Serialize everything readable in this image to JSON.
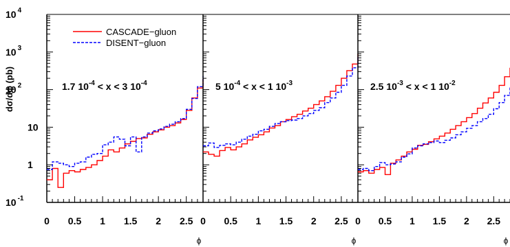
{
  "colors": {
    "cascade": "#ff0000",
    "disent": "#0000ff",
    "axis": "#000000"
  },
  "ylabel": "dσ/dϕ (pb)",
  "y_ticks": [
    {
      "value": 0.1,
      "base": "10",
      "exp": "-1"
    },
    {
      "value": 1,
      "base": "1",
      "exp": ""
    },
    {
      "value": 10,
      "base": "10",
      "exp": ""
    },
    {
      "value": 100,
      "base": "10",
      "exp": "2"
    },
    {
      "value": 1000,
      "base": "10",
      "exp": "3"
    },
    {
      "value": 10000,
      "base": "10",
      "exp": "4"
    }
  ],
  "x_tick_labels": [
    "0",
    "0.5",
    "1",
    "1.5",
    "2",
    "2.5"
  ],
  "legend": {
    "cascade": "CASCADE−gluon",
    "disent": "DISENT−gluon"
  },
  "chart_data": [
    {
      "type": "line",
      "title": "",
      "xlabel": "ϕ",
      "ylabel": "dσ/dϕ (pb)",
      "y_scale": "log",
      "xlim": [
        0,
        2.8
      ],
      "ylim": [
        0.1,
        10000
      ],
      "annotation": {
        "lo": "1.7",
        "lo_exp": "-4",
        "mid": " < x < 3 ",
        "hi": "10",
        "hi_exp": "-4"
      },
      "x": [
        0.0,
        0.1,
        0.2,
        0.3,
        0.4,
        0.5,
        0.6,
        0.7,
        0.8,
        0.9,
        1.0,
        1.1,
        1.2,
        1.3,
        1.4,
        1.5,
        1.6,
        1.7,
        1.8,
        1.9,
        2.0,
        2.1,
        2.2,
        2.3,
        2.4,
        2.5,
        2.6,
        2.7,
        2.8
      ],
      "series": [
        {
          "name": "CASCADE−gluon",
          "values": [
            0.4,
            0.8,
            0.25,
            0.6,
            0.7,
            0.65,
            0.75,
            0.85,
            1.0,
            1.3,
            1.7,
            2.5,
            2.2,
            2.8,
            3.6,
            4.2,
            5.0,
            5.2,
            6.5,
            7.5,
            8.5,
            10,
            11,
            13,
            16,
            28,
            60,
            110,
            190
          ]
        },
        {
          "name": "DISENT−gluon",
          "values": [
            0.75,
            1.2,
            1.1,
            1.0,
            0.9,
            1.1,
            1.2,
            1.6,
            1.9,
            2.0,
            3.4,
            4.0,
            5.5,
            4.8,
            3.2,
            5.5,
            2.2,
            5.5,
            7.0,
            8.0,
            9.0,
            10.5,
            12,
            14,
            17,
            30,
            58,
            120,
            230
          ]
        }
      ]
    },
    {
      "type": "line",
      "title": "",
      "xlabel": "ϕ",
      "ylabel": "",
      "y_scale": "log",
      "xlim": [
        0,
        2.8
      ],
      "ylim": [
        0.1,
        10000
      ],
      "annotation": {
        "lo": "5",
        "lo_exp": "-4",
        "mid": " < x < 1 ",
        "hi": "10",
        "hi_exp": "-3"
      },
      "x": [
        0.0,
        0.1,
        0.2,
        0.3,
        0.4,
        0.5,
        0.6,
        0.7,
        0.8,
        0.9,
        1.0,
        1.1,
        1.2,
        1.3,
        1.4,
        1.5,
        1.6,
        1.7,
        1.8,
        1.9,
        2.0,
        2.1,
        2.2,
        2.3,
        2.4,
        2.5,
        2.6,
        2.7,
        2.8
      ],
      "series": [
        {
          "name": "CASCADE−gluon",
          "values": [
            2.2,
            1.9,
            1.7,
            2.4,
            2.9,
            2.5,
            3.0,
            3.6,
            4.6,
            5.4,
            6.3,
            7.5,
            9.5,
            11,
            14,
            16,
            19,
            22,
            27,
            32,
            40,
            50,
            65,
            90,
            130,
            200,
            320,
            480,
            900
          ]
        },
        {
          "name": "DISENT−gluon",
          "values": [
            3.2,
            3.8,
            2.9,
            3.3,
            3.6,
            3.4,
            4.0,
            4.8,
            5.8,
            6.5,
            8.0,
            8.8,
            10.5,
            12.5,
            14,
            15,
            15.5,
            17,
            20,
            23,
            28,
            33,
            45,
            60,
            85,
            130,
            230,
            380,
            760
          ]
        }
      ]
    },
    {
      "type": "line",
      "title": "",
      "xlabel": "ϕ",
      "ylabel": "",
      "y_scale": "log",
      "xlim": [
        0,
        2.8
      ],
      "ylim": [
        0.1,
        10000
      ],
      "annotation": {
        "lo": "2.5",
        "lo_exp": "-3",
        "mid": " < x < 1 ",
        "hi": "10",
        "hi_exp": "-2"
      },
      "x": [
        0.0,
        0.1,
        0.2,
        0.3,
        0.4,
        0.5,
        0.6,
        0.7,
        0.8,
        0.9,
        1.0,
        1.1,
        1.2,
        1.3,
        1.4,
        1.5,
        1.6,
        1.7,
        1.8,
        1.9,
        2.0,
        2.1,
        2.2,
        2.3,
        2.4,
        2.5,
        2.6,
        2.7,
        2.8
      ],
      "series": [
        {
          "name": "CASCADE−gluon",
          "values": [
            0.65,
            0.7,
            0.6,
            0.75,
            0.85,
            0.55,
            1.1,
            1.35,
            1.7,
            2.2,
            2.6,
            3.3,
            3.5,
            4.1,
            4.9,
            5.8,
            7.0,
            8.8,
            11,
            14,
            18,
            23,
            32,
            44,
            60,
            85,
            130,
            220,
            380
          ]
        },
        {
          "name": "DISENT−gluon",
          "values": [
            0.75,
            0.8,
            0.7,
            0.9,
            1.15,
            1.0,
            1.05,
            1.2,
            1.6,
            1.95,
            2.8,
            3.2,
            3.6,
            3.9,
            4.3,
            3.9,
            4.5,
            5.2,
            6.3,
            7.5,
            9.3,
            11,
            14,
            17,
            22,
            31,
            45,
            70,
            120
          ]
        }
      ]
    }
  ]
}
